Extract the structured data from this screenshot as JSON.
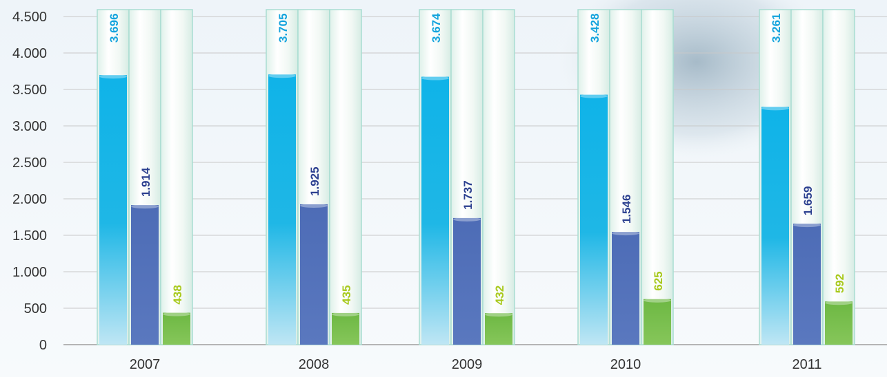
{
  "chart_data": {
    "type": "bar",
    "title": "",
    "xlabel": "",
    "ylabel": "",
    "categories": [
      "2007",
      "2008",
      "2009",
      "2010",
      "2011"
    ],
    "series": [
      {
        "values": [
          3696,
          3705,
          3674,
          3428,
          3261
        ]
      },
      {
        "values": [
          1914,
          1925,
          1737,
          1546,
          1659
        ]
      },
      {
        "values": [
          438,
          435,
          432,
          625,
          592
        ]
      }
    ],
    "data_labels": [
      [
        "3.696",
        "3.705",
        "3.674",
        "3.428",
        "3.261"
      ],
      [
        "1.914",
        "1.925",
        "1.737",
        "1.546",
        "1.659"
      ],
      [
        "438",
        "435",
        "432",
        "625",
        "592"
      ]
    ],
    "yticks": [
      0,
      500,
      1000,
      1500,
      2000,
      2500,
      3000,
      3500,
      4000,
      4500
    ],
    "ytick_labels": [
      "0",
      "500",
      "1.000",
      "1.500",
      "2.000",
      "2.500",
      "3.000",
      "3.500",
      "4.000",
      "4.500"
    ],
    "ylim": [
      0,
      4500
    ],
    "grid": true,
    "legend": "none"
  },
  "colors": {
    "series_fill": [
      "#16b6e6",
      "#4f6fb8",
      "#7cc04e"
    ],
    "label_text": [
      "#13a3dd",
      "#2b3f8f",
      "#a8c91c"
    ],
    "tube": "#e9f4ef",
    "tube_border": "#a9ddd2",
    "grid": "#c8c8c8",
    "axis_text": "#333333",
    "background_tint": "#eef4f9"
  }
}
